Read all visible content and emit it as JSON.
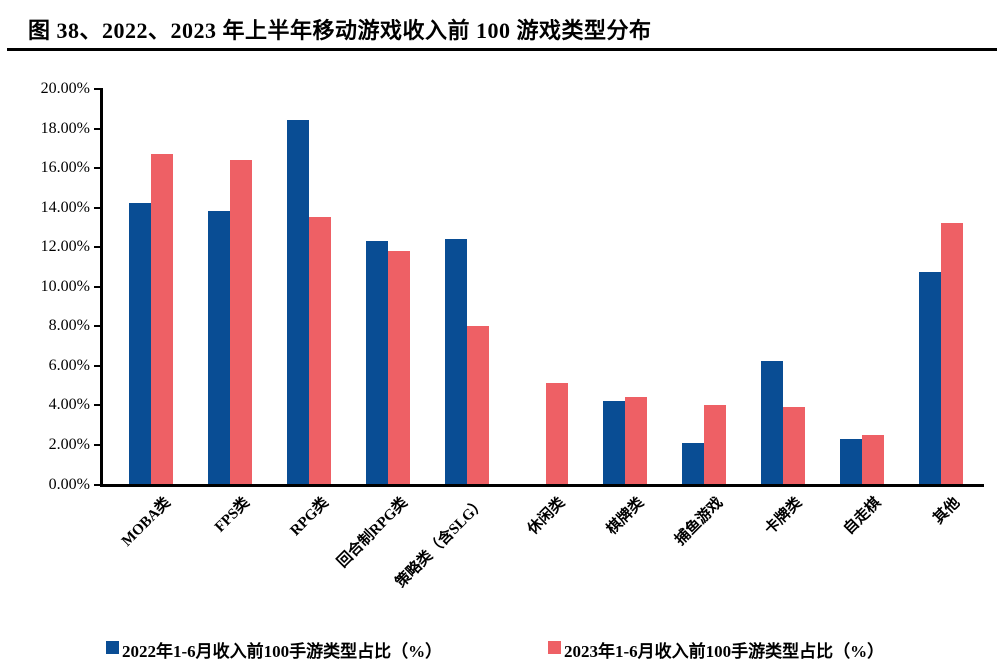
{
  "figure": {
    "title": "图 38、2022、2023 年上半年移动游戏收入前 100 游戏类型分布"
  },
  "colors": {
    "series_2022": "#094d94",
    "series_2023": "#ee6065",
    "axis": "#000000",
    "text": "#000000",
    "background": "#ffffff"
  },
  "chart_data": {
    "type": "bar",
    "title": "图 38、2022、2023 年上半年移动游戏收入前 100 游戏类型分布",
    "categories": [
      "MOBA类",
      "FPS类",
      "RPG类",
      "回合制RPG类",
      "策略类（含SLG）",
      "休闲类",
      "棋牌类",
      "捕鱼游戏",
      "卡牌类",
      "自走棋",
      "其他"
    ],
    "series": [
      {
        "name": "2022年1-6月收入前100手游类型占比（%）",
        "color": "#094d94",
        "values": [
          14.2,
          13.8,
          18.4,
          12.3,
          12.4,
          0,
          4.2,
          2.1,
          6.2,
          2.3,
          10.7
        ]
      },
      {
        "name": "2023年1-6月收入前100手游类型占比（%）",
        "color": "#ee6065",
        "values": [
          16.7,
          16.4,
          13.5,
          11.8,
          8.0,
          5.1,
          4.4,
          4.0,
          3.9,
          2.5,
          13.2
        ]
      }
    ],
    "xlabel": "",
    "ylabel": "",
    "ylim": [
      0,
      20
    ],
    "ytick_step": 2,
    "ytick_format": "0.00%",
    "grid": false,
    "legend_position": "bottom"
  }
}
